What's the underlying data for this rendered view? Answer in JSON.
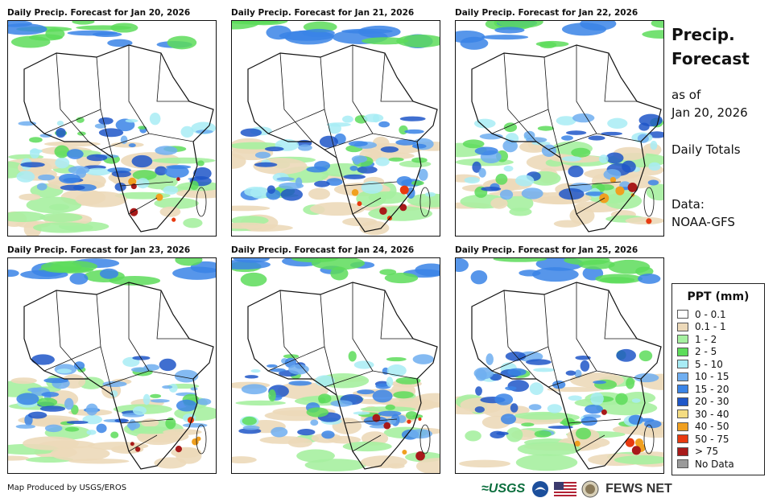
{
  "panels": [
    {
      "title": "Daily Precip. Forecast for Jan 20, 2026"
    },
    {
      "title": "Daily Precip. Forecast for Jan 21, 2026"
    },
    {
      "title": "Daily Precip. Forecast for Jan 22, 2026"
    },
    {
      "title": "Daily Precip. Forecast for Jan 23, 2026"
    },
    {
      "title": "Daily Precip. Forecast for Jan 24, 2026"
    },
    {
      "title": "Daily Precip. Forecast for Jan 25, 2026"
    }
  ],
  "sidebar": {
    "title_line1": "Precip.",
    "title_line2": "Forecast",
    "asof_line1": "as of",
    "asof_line2": "Jan 20, 2026",
    "totals": "Daily Totals",
    "data_line1": "Data:",
    "data_line2": "NOAA-GFS"
  },
  "legend": {
    "title": "PPT (mm)",
    "items": [
      {
        "label": "0 - 0.1",
        "color": "#ffffff"
      },
      {
        "label": "0.1 - 1",
        "color": "#ecd9b9"
      },
      {
        "label": "1 - 2",
        "color": "#a6f0a0"
      },
      {
        "label": "2 - 5",
        "color": "#5ddc5a"
      },
      {
        "label": "5 - 10",
        "color": "#a8ecf5"
      },
      {
        "label": "10 - 15",
        "color": "#6faef0"
      },
      {
        "label": "15 - 20",
        "color": "#3a84e6"
      },
      {
        "label": "20 - 30",
        "color": "#1e56c8"
      },
      {
        "label": "30 - 40",
        "color": "#f4dc82"
      },
      {
        "label": "40 - 50",
        "color": "#f0a020"
      },
      {
        "label": "50 - 75",
        "color": "#e83a10"
      },
      {
        "label": "> 75",
        "color": "#a81a1a"
      },
      {
        "label": "No Data",
        "color": "#9a9a9a"
      }
    ]
  },
  "footer": {
    "credit": "Map Produced by USGS/EROS"
  },
  "logos": {
    "usgs": "≈USGS",
    "fews": "FEWS NET"
  }
}
